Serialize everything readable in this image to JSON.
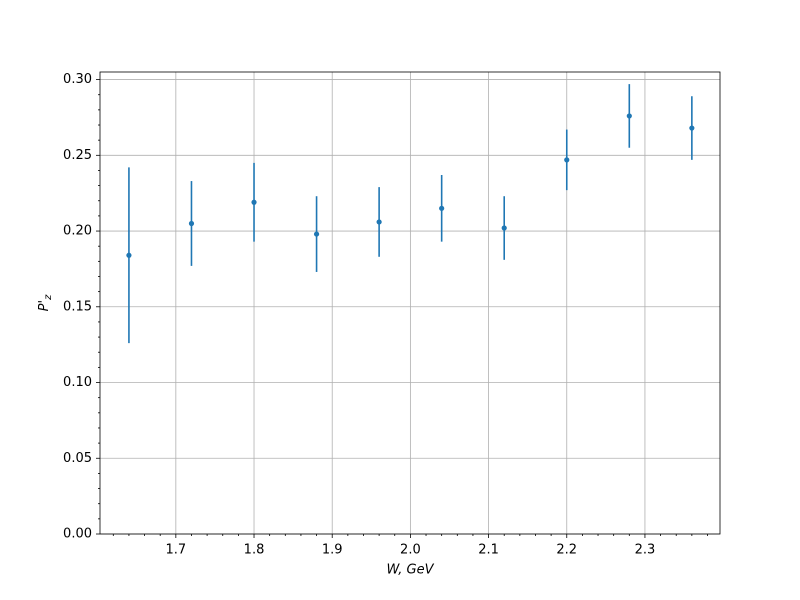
{
  "chart_data": {
    "type": "errorbar",
    "xlabel": "W, GeV",
    "ylabel": "P'",
    "ylabel_sub": "z",
    "x": [
      1.64,
      1.72,
      1.8,
      1.88,
      1.96,
      2.04,
      2.12,
      2.2,
      2.28,
      2.36
    ],
    "series": [
      {
        "color": "#1f77b4",
        "values": [
          0.184,
          0.205,
          0.219,
          0.198,
          0.206,
          0.215,
          0.202,
          0.247,
          0.276,
          0.268
        ],
        "errors": [
          0.058,
          0.028,
          0.026,
          0.025,
          0.023,
          0.022,
          0.021,
          0.02,
          0.021,
          0.021
        ]
      }
    ],
    "xlim": [
      1.603,
      2.396
    ],
    "ylim": [
      0,
      0.305
    ],
    "xticks": [
      {
        "value": 1.7,
        "label": "1.7"
      },
      {
        "value": 1.8,
        "label": "1.8"
      },
      {
        "value": 1.9,
        "label": "1.9"
      },
      {
        "value": 2.0,
        "label": "2.0"
      },
      {
        "value": 2.1,
        "label": "2.1"
      },
      {
        "value": 2.2,
        "label": "2.2"
      },
      {
        "value": 2.3,
        "label": "2.3"
      }
    ],
    "yticks": [
      {
        "value": 0,
        "label": "0.00"
      },
      {
        "value": 0.05,
        "label": "0.05"
      },
      {
        "value": 0.1,
        "label": "0.10"
      },
      {
        "value": 0.15,
        "label": "0.15"
      },
      {
        "value": 0.2,
        "label": "0.20"
      },
      {
        "value": 0.25,
        "label": "0.25"
      },
      {
        "value": 0.3,
        "label": "0.30"
      }
    ],
    "xminorticks": [
      1.62,
      1.64,
      1.66,
      1.68,
      1.72,
      1.74,
      1.76,
      1.78,
      1.82,
      1.84,
      1.86,
      1.88,
      1.92,
      1.94,
      1.96,
      1.98,
      2.02,
      2.04,
      2.06,
      2.08,
      2.12,
      2.14,
      2.16,
      2.18,
      2.22,
      2.24,
      2.26,
      2.28,
      2.32,
      2.34,
      2.36,
      2.38
    ],
    "yminorticks": [
      0.01,
      0.02,
      0.03,
      0.04,
      0.06,
      0.07,
      0.08,
      0.09,
      0.11,
      0.12,
      0.13,
      0.14,
      0.16,
      0.17,
      0.18,
      0.19,
      0.21,
      0.22,
      0.23,
      0.24,
      0.26,
      0.27,
      0.28,
      0.29
    ],
    "grid": true
  }
}
